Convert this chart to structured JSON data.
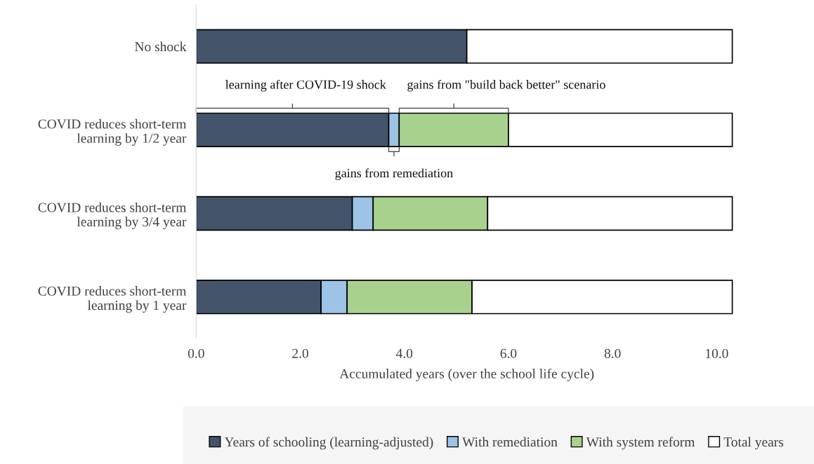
{
  "chart_data": {
    "type": "bar",
    "orientation": "horizontal",
    "stacked": true,
    "categories": [
      "No shock",
      "COVID reduces short-term\nlearning by 1/2 year",
      "COVID reduces short-term\nlearning by 3/4 year",
      "COVID reduces short-term\nlearning by 1 year"
    ],
    "series": [
      {
        "name": "Years of schooling (learning-adjusted)",
        "color": "#44546a",
        "values": [
          5.2,
          3.7,
          3.0,
          2.4
        ]
      },
      {
        "name": "With remediation",
        "color": "#9dc3e6",
        "values": [
          null,
          0.2,
          0.4,
          0.5
        ]
      },
      {
        "name": "With system reform",
        "color": "#a9d18e",
        "values": [
          null,
          2.1,
          2.2,
          2.4
        ]
      },
      {
        "name": "Total years",
        "color": "#ffffff",
        "values": [
          5.1,
          4.3,
          4.7,
          5.0
        ]
      }
    ],
    "xlabel": "Accumulated years (over the school life cycle)",
    "xlim": [
      0,
      10.4
    ],
    "xticks": [
      {
        "value": 0,
        "label": "0.0"
      },
      {
        "value": 2,
        "label": "2.0"
      },
      {
        "value": 4,
        "label": "4.0"
      },
      {
        "value": 6,
        "label": "6.0"
      },
      {
        "value": 8,
        "label": "8.0"
      },
      {
        "value": 10,
        "label": "10.0"
      }
    ],
    "annotations": [
      "learning after COVID-19 shock",
      "gains from \"build back better\" scenario",
      "gains from remediation"
    ],
    "grid": false,
    "legend": "bottom"
  }
}
